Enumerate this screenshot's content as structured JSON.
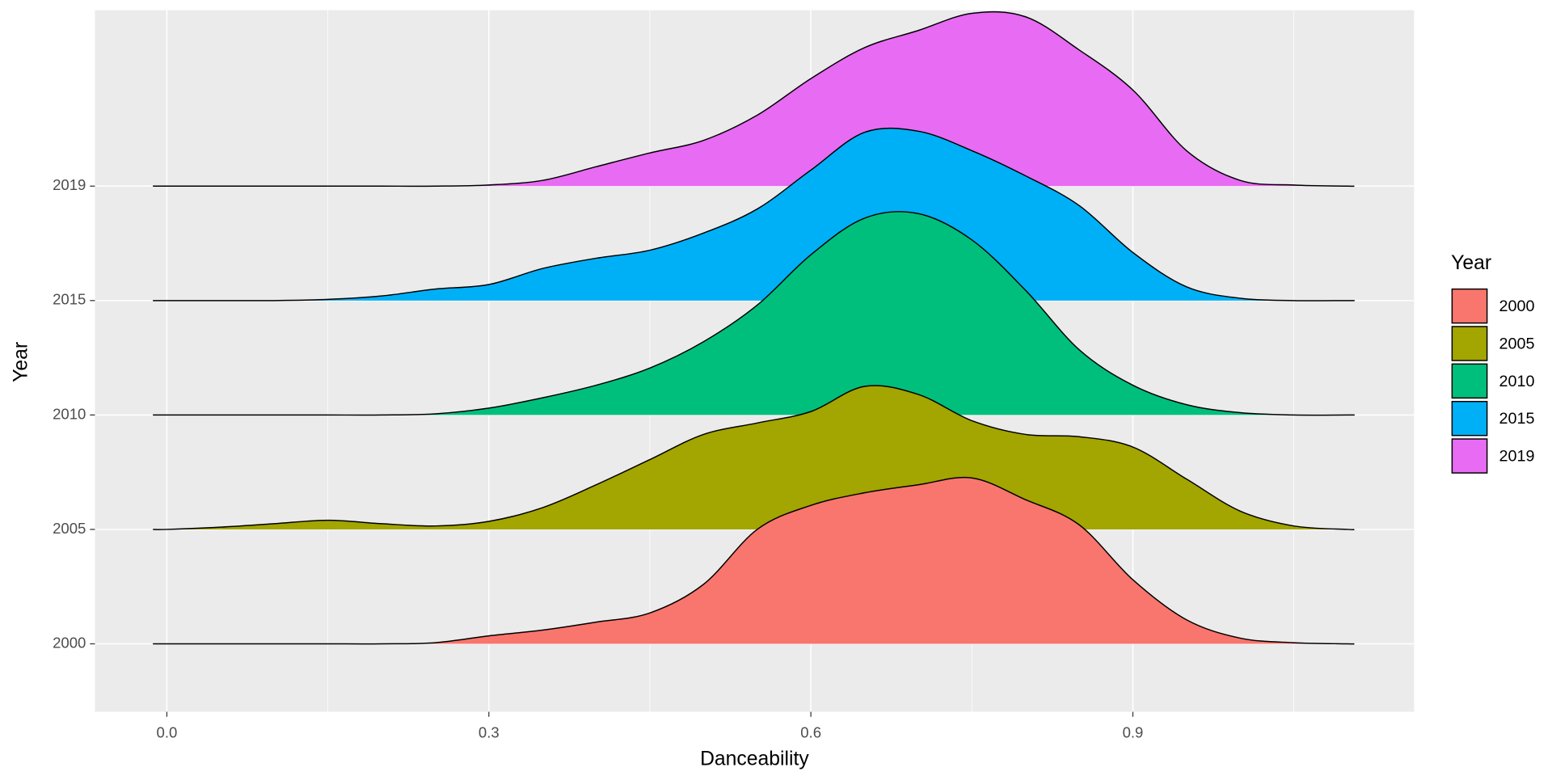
{
  "chart_data": {
    "type": "ridgeline",
    "x_label": "Danceability",
    "y_label": "Year",
    "legend_title": "Year",
    "legend_position": "right",
    "grid": true,
    "xlim": [
      -0.067,
      1.162
    ],
    "xticks": [
      {
        "value": 0,
        "label": "0.0"
      },
      0.3,
      0.6,
      0.9
    ],
    "x_minor_grid": [
      0.15,
      0.45,
      0.75,
      1.05
    ],
    "x": [
      -0.013,
      0,
      0.05,
      0.1,
      0.15,
      0.2,
      0.25,
      0.3,
      0.35,
      0.4,
      0.45,
      0.5,
      0.55,
      0.6,
      0.65,
      0.7,
      0.75,
      0.8,
      0.85,
      0.9,
      0.95,
      1.0,
      1.05,
      1.1,
      1.106
    ],
    "series": [
      {
        "name": "2000",
        "color": "#F8766D",
        "values": [
          0,
          0,
          0,
          0,
          0,
          0,
          0.01,
          0.07,
          0.12,
          0.19,
          0.27,
          0.52,
          1.0,
          1.21,
          1.32,
          1.39,
          1.45,
          1.26,
          1.04,
          0.56,
          0.21,
          0.05,
          0.01,
          0,
          0
        ]
      },
      {
        "name": "2005",
        "color": "#A3A500",
        "values": [
          0,
          0,
          0.02,
          0.05,
          0.08,
          0.05,
          0.03,
          0.07,
          0.19,
          0.39,
          0.61,
          0.83,
          0.93,
          1.03,
          1.25,
          1.18,
          0.95,
          0.83,
          0.81,
          0.72,
          0.44,
          0.16,
          0.03,
          0,
          0
        ]
      },
      {
        "name": "2010",
        "color": "#00BF7D",
        "values": [
          0,
          0,
          0,
          0,
          0,
          0,
          0.01,
          0.06,
          0.15,
          0.26,
          0.41,
          0.64,
          0.96,
          1.4,
          1.72,
          1.76,
          1.53,
          1.09,
          0.57,
          0.26,
          0.09,
          0.02,
          0,
          0,
          0
        ]
      },
      {
        "name": "2015",
        "color": "#00B0F6",
        "values": [
          0,
          0,
          0,
          0,
          0.01,
          0.04,
          0.1,
          0.14,
          0.28,
          0.37,
          0.44,
          0.59,
          0.8,
          1.14,
          1.47,
          1.48,
          1.31,
          1.09,
          0.83,
          0.42,
          0.12,
          0.02,
          0,
          0,
          0
        ]
      },
      {
        "name": "2019",
        "color": "#E76BF3",
        "values": [
          0,
          0,
          0,
          0,
          0,
          0,
          0,
          0.01,
          0.05,
          0.17,
          0.29,
          0.4,
          0.62,
          0.94,
          1.21,
          1.36,
          1.51,
          1.48,
          1.19,
          0.84,
          0.31,
          0.05,
          0.01,
          0,
          0
        ]
      }
    ]
  }
}
